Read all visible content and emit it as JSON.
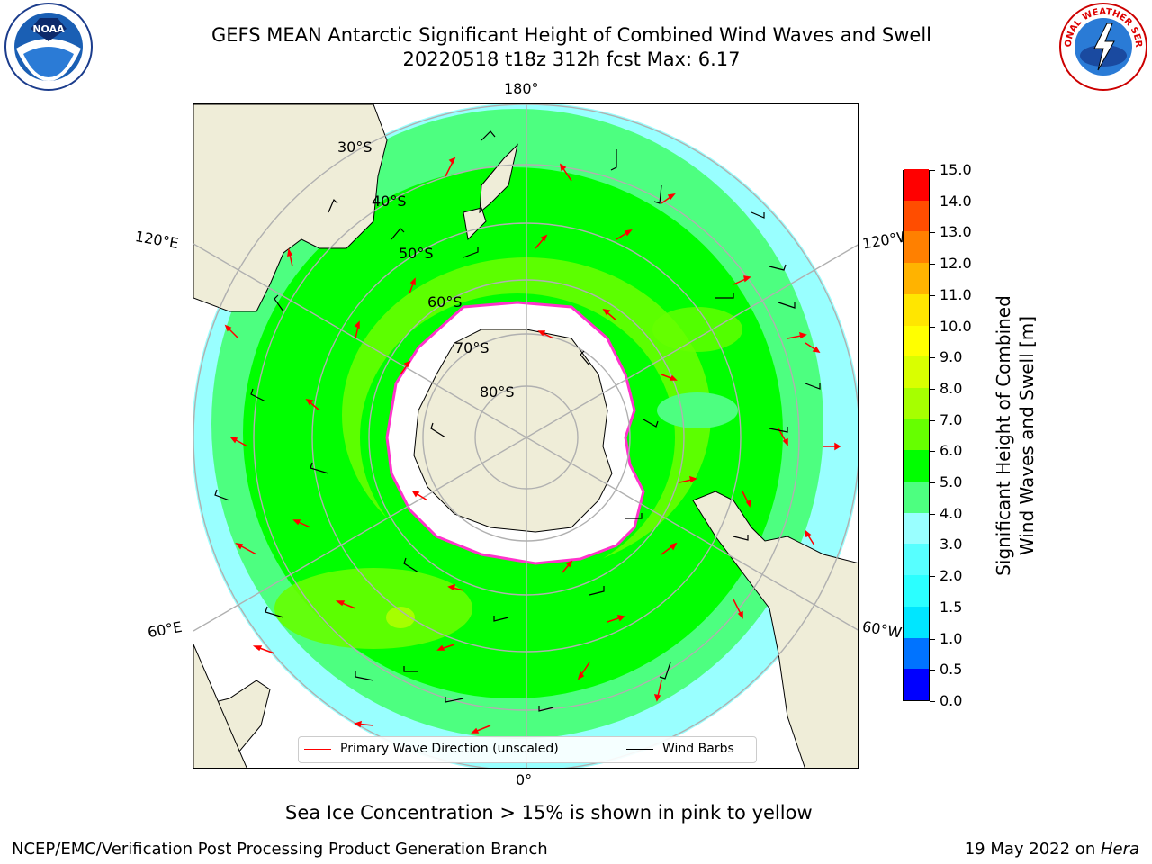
{
  "title_line1": "GEFS MEAN Antarctic Significant Height of Combined Wind Waves and Swell",
  "title_line2": "20220518 t18z 312h fcst   Max: 6.17",
  "logos": {
    "left": "NOAA",
    "right": "NATIONAL WEATHER SERVICE"
  },
  "map": {
    "projection": "south-polar-stereographic",
    "longitude_labels": {
      "top": "180°",
      "bottom": "0°",
      "upper_left": "120°E",
      "upper_right": "120°W",
      "lower_left": "60°E",
      "lower_right": "60°W"
    },
    "latitude_labels": [
      "30°S",
      "40°S",
      "50°S",
      "60°S",
      "70°S",
      "80°S"
    ],
    "colors": {
      "land": "#efedd8",
      "ice": "#ffffff",
      "sea_ice_edge": "#ff33cc",
      "arrow": "#ff0000",
      "barb": "#000000",
      "grid": "#b0b0b0"
    }
  },
  "colorbar": {
    "label_line1": "Significant Height of Combined",
    "label_line2": "Wind Waves and Swell [m]",
    "ticks": [
      "0.0",
      "0.5",
      "1.0",
      "1.5",
      "2.0",
      "3.0",
      "4.0",
      "5.0",
      "6.0",
      "7.0",
      "8.0",
      "9.0",
      "10.0",
      "11.0",
      "12.0",
      "13.0",
      "14.0",
      "15.0"
    ],
    "colors": [
      "#0000ff",
      "#0073ff",
      "#00e6ff",
      "#2bffff",
      "#57ffff",
      "#99ffff",
      "#4dff80",
      "#00ff00",
      "#66ff00",
      "#a6ff00",
      "#d9ff00",
      "#ffff00",
      "#ffe600",
      "#ffb300",
      "#ff8000",
      "#ff4d00",
      "#ff0000"
    ]
  },
  "legend": {
    "wave_direction": "Primary Wave Direction (unscaled)",
    "wind_barbs": "Wind Barbs"
  },
  "subtitle": "Sea Ice Concentration > 15% is shown in pink to yellow",
  "footer_left": "NCEP/EMC/Verification Post Processing Product Generation Branch",
  "footer_right_date": "19 May 2022 on ",
  "footer_right_host": "Hera"
}
